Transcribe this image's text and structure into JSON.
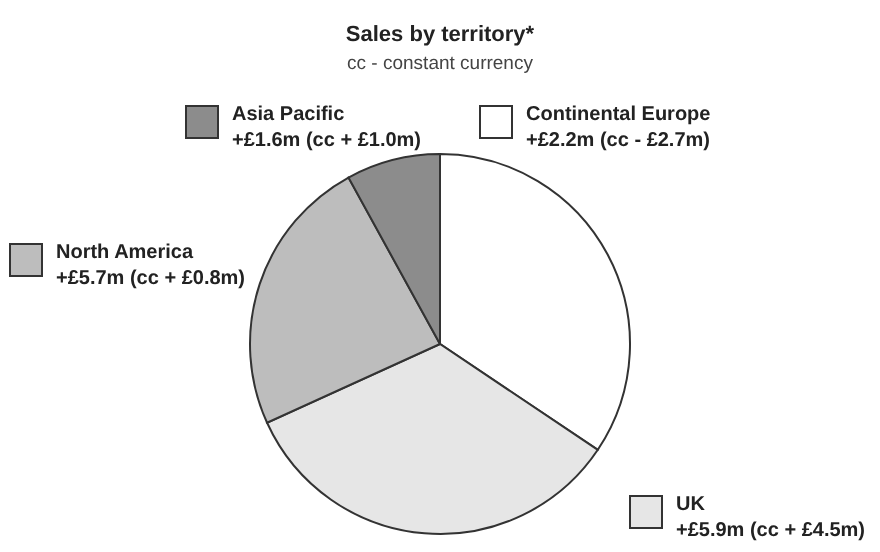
{
  "chart_data": {
    "type": "pie",
    "title": "Sales by territory*",
    "subtitle": "cc - constant currency",
    "categories": [
      "Continental Europe",
      "UK",
      "North America",
      "Asia Pacific"
    ],
    "values": [
      34.4,
      33.8,
      23.8,
      8.0
    ],
    "legend": "top",
    "colors": [
      "#ffffff",
      "#e6e6e6",
      "#bdbdbd",
      "#8c8c8c"
    ],
    "value_labels": [
      "+£2.2m (cc - £2.7m)",
      "+£5.9m (cc + £4.5m)",
      "+£5.7m (cc + £0.8m)",
      "+£1.6m (cc + £1.0m)"
    ]
  }
}
